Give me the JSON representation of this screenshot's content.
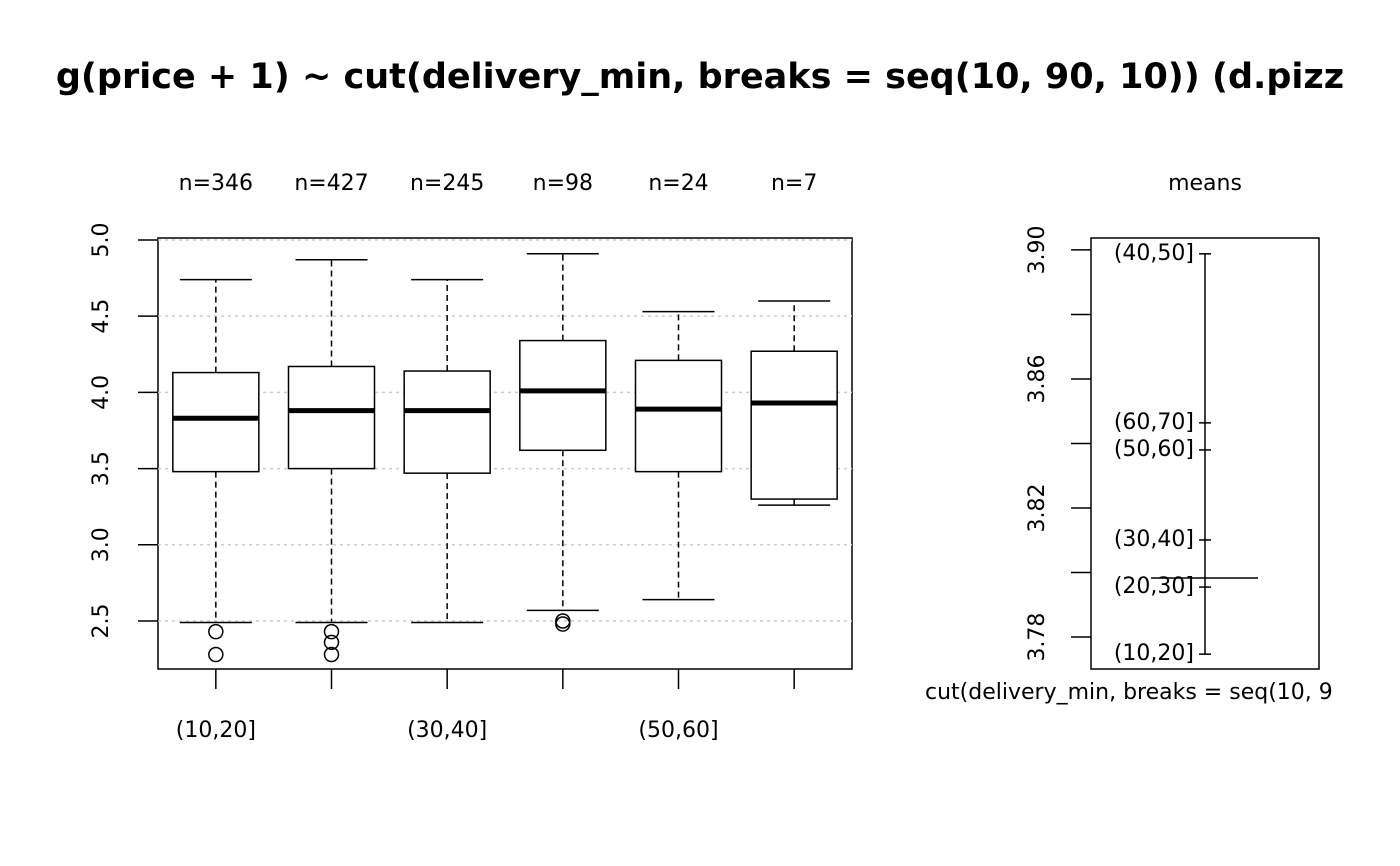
{
  "chart_data": [
    {
      "type": "boxplot",
      "title": "g(price + 1) ~ cut(delivery_min, breaks = seq(10, 90, 10)) (d.pizz",
      "categories": [
        "(10,20]",
        null,
        "(30,40]",
        null,
        "(50,60]",
        null
      ],
      "n_labels": [
        "n=346",
        "n=427",
        "n=245",
        "n=98",
        "n=24",
        "n=7"
      ],
      "boxes": [
        {
          "whisker_low": 2.49,
          "q1": 3.48,
          "median": 3.83,
          "q3": 4.13,
          "whisker_high": 4.74,
          "outliers": [
            2.43,
            2.28
          ]
        },
        {
          "whisker_low": 2.49,
          "q1": 3.5,
          "median": 3.88,
          "q3": 4.17,
          "whisker_high": 4.87,
          "outliers": [
            2.43,
            2.36,
            2.28
          ]
        },
        {
          "whisker_low": 2.49,
          "q1": 3.47,
          "median": 3.88,
          "q3": 4.14,
          "whisker_high": 4.74,
          "outliers": []
        },
        {
          "whisker_low": 2.57,
          "q1": 3.62,
          "median": 4.01,
          "q3": 4.34,
          "whisker_high": 4.91,
          "outliers": [
            2.5,
            2.48
          ]
        },
        {
          "whisker_low": 2.64,
          "q1": 3.48,
          "median": 3.89,
          "q3": 4.21,
          "whisker_high": 4.53,
          "outliers": []
        },
        {
          "whisker_low": 3.26,
          "q1": 3.3,
          "median": 3.93,
          "q3": 4.27,
          "whisker_high": 4.6,
          "outliers": []
        }
      ],
      "ylim": [
        2.185,
        5.013
      ],
      "yticks": [
        2.5,
        {
          "value": 3,
          "label": "3.0"
        },
        3.5,
        {
          "value": 4,
          "label": "4.0"
        },
        4.5,
        {
          "value": 5,
          "label": "5.0"
        }
      ],
      "grid": true
    },
    {
      "type": "means",
      "title": "means",
      "xlabel": "cut(delivery_min, breaks = seq(10, 9",
      "points": [
        {
          "label": "(40,50]",
          "value": 3.8988
        },
        {
          "label": "(60,70]",
          "value": 3.8464
        },
        {
          "label": "(50,60]",
          "value": 3.838
        },
        {
          "label": "(30,40]",
          "value": 3.8101
        },
        {
          "label": "(20,30]",
          "value": 3.7955
        },
        {
          "label": "(10,20]",
          "value": 3.7747
        }
      ],
      "grand_mean": 3.7983,
      "ylim": [
        3.7701,
        3.9037
      ],
      "yticks": [
        3.78,
        3.82,
        3.86,
        {
          "value": 3.9,
          "label": "3.90"
        }
      ],
      "minor_yticks": [
        3.8,
        3.84,
        3.88
      ]
    }
  ]
}
